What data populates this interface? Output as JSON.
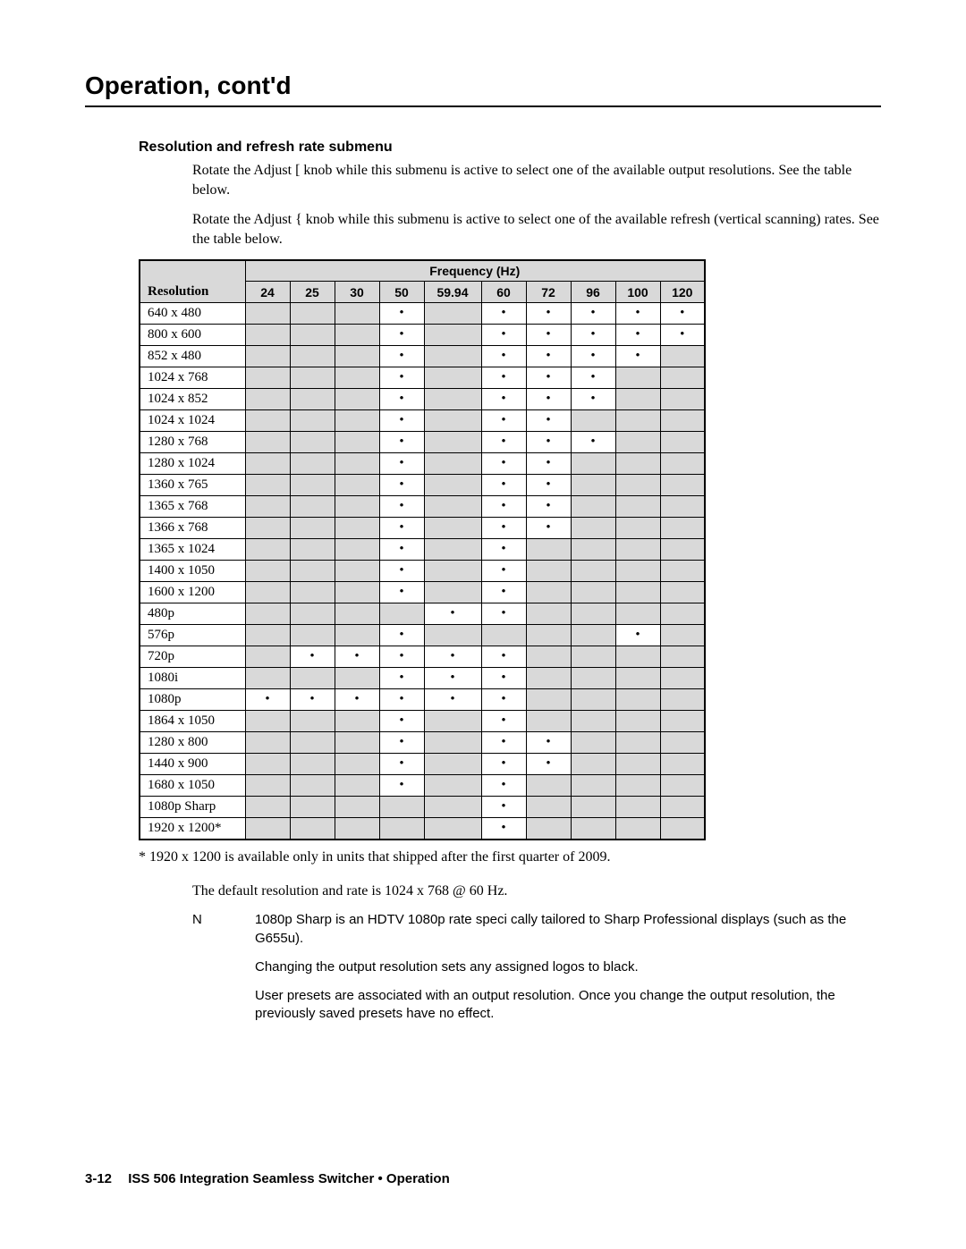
{
  "title": "Operation, cont'd",
  "section_heading": "Resolution and refresh rate submenu",
  "para1": "Rotate the Adjust [ knob while this submenu is active to select one of the available output resolutions.  See the table below.",
  "para2": "Rotate the Adjust { knob while this submenu is active to select one of the available refresh (vertical scanning) rates.  See the table below.",
  "table": {
    "group_header": "Frequency (Hz)",
    "res_header": "Resolution",
    "freq_headers": [
      "24",
      "25",
      "30",
      "50",
      "59.94",
      "60",
      "72",
      "96",
      "100",
      "120"
    ],
    "rows": [
      {
        "label": "640 x 480",
        "vals": [
          0,
          0,
          0,
          1,
          0,
          1,
          1,
          1,
          1,
          1
        ]
      },
      {
        "label": "800 x 600",
        "vals": [
          0,
          0,
          0,
          1,
          0,
          1,
          1,
          1,
          1,
          1
        ]
      },
      {
        "label": "852 x 480",
        "vals": [
          0,
          0,
          0,
          1,
          0,
          1,
          1,
          1,
          1,
          0
        ]
      },
      {
        "label": "1024 x 768",
        "vals": [
          0,
          0,
          0,
          1,
          0,
          1,
          1,
          1,
          0,
          0
        ]
      },
      {
        "label": "1024 x 852",
        "vals": [
          0,
          0,
          0,
          1,
          0,
          1,
          1,
          1,
          0,
          0
        ]
      },
      {
        "label": "1024 x 1024",
        "vals": [
          0,
          0,
          0,
          1,
          0,
          1,
          1,
          0,
          0,
          0
        ]
      },
      {
        "label": "1280 x 768",
        "vals": [
          0,
          0,
          0,
          1,
          0,
          1,
          1,
          1,
          0,
          0
        ]
      },
      {
        "label": "1280 x 1024",
        "vals": [
          0,
          0,
          0,
          1,
          0,
          1,
          1,
          0,
          0,
          0
        ]
      },
      {
        "label": "1360 x 765",
        "vals": [
          0,
          0,
          0,
          1,
          0,
          1,
          1,
          0,
          0,
          0
        ]
      },
      {
        "label": "1365 x 768",
        "vals": [
          0,
          0,
          0,
          1,
          0,
          1,
          1,
          0,
          0,
          0
        ]
      },
      {
        "label": "1366 x 768",
        "vals": [
          0,
          0,
          0,
          1,
          0,
          1,
          1,
          0,
          0,
          0
        ]
      },
      {
        "label": "1365 x 1024",
        "vals": [
          0,
          0,
          0,
          1,
          0,
          1,
          0,
          0,
          0,
          0
        ]
      },
      {
        "label": "1400 x 1050",
        "vals": [
          0,
          0,
          0,
          1,
          0,
          1,
          0,
          0,
          0,
          0
        ]
      },
      {
        "label": "1600 x 1200",
        "vals": [
          0,
          0,
          0,
          1,
          0,
          1,
          0,
          0,
          0,
          0
        ]
      },
      {
        "label": "480p",
        "vals": [
          0,
          0,
          0,
          0,
          1,
          1,
          0,
          0,
          0,
          0
        ]
      },
      {
        "label": "576p",
        "vals": [
          0,
          0,
          0,
          1,
          0,
          0,
          0,
          0,
          1,
          0
        ]
      },
      {
        "label": "720p",
        "vals": [
          0,
          1,
          1,
          1,
          1,
          1,
          0,
          0,
          0,
          0
        ]
      },
      {
        "label": "1080i",
        "vals": [
          0,
          0,
          0,
          1,
          1,
          1,
          0,
          0,
          0,
          0
        ]
      },
      {
        "label": "1080p",
        "vals": [
          1,
          1,
          1,
          1,
          1,
          1,
          0,
          0,
          0,
          0
        ]
      },
      {
        "label": "1864 x 1050",
        "vals": [
          0,
          0,
          0,
          1,
          0,
          1,
          0,
          0,
          0,
          0
        ]
      },
      {
        "label": "1280 x 800",
        "vals": [
          0,
          0,
          0,
          1,
          0,
          1,
          1,
          0,
          0,
          0
        ]
      },
      {
        "label": "1440 x 900",
        "vals": [
          0,
          0,
          0,
          1,
          0,
          1,
          1,
          0,
          0,
          0
        ]
      },
      {
        "label": "1680 x 1050",
        "vals": [
          0,
          0,
          0,
          1,
          0,
          1,
          0,
          0,
          0,
          0
        ]
      },
      {
        "label": "1080p Sharp",
        "vals": [
          0,
          0,
          0,
          0,
          0,
          1,
          0,
          0,
          0,
          0
        ]
      },
      {
        "label": "1920 x 1200*",
        "vals": [
          0,
          0,
          0,
          0,
          0,
          1,
          0,
          0,
          0,
          0
        ]
      }
    ]
  },
  "footnote": "*  1920 x 1200 is available only in units that shipped after the first quarter of 2009.",
  "default_note": "The default resolution and rate is 1024 x 768 @ 60 Hz.",
  "notes_label": "N",
  "notes": [
    "1080p Sharp is an HDTV 1080p rate speci cally tailored to Sharp Professional displays (such as the G655u).",
    "Changing the output resolution sets any assigned logos to black.",
    "User presets are associated with an output resolution.  Once you change the output resolution, the previously saved presets have no effect."
  ],
  "footer": {
    "page_num": "3-12",
    "text": "ISS 506 Integration Seamless Switcher • Operation"
  },
  "dot": "•"
}
